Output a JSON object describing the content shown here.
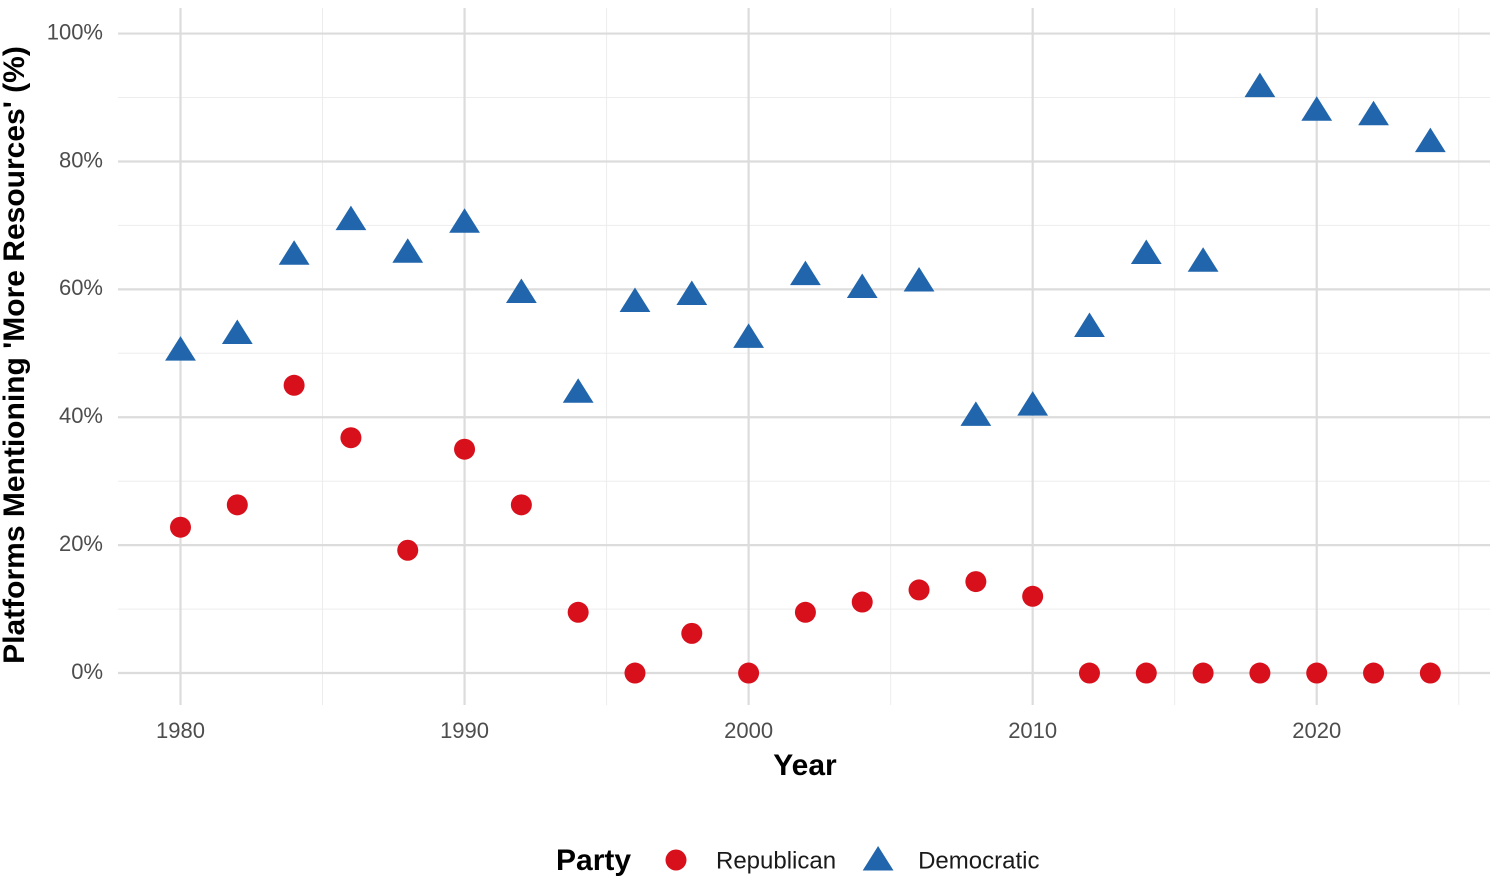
{
  "chart_data": {
    "type": "scatter",
    "x_label": "Year",
    "y_label": "Platforms Mentioning 'More Resources' (%)",
    "legend_title": "Party",
    "legend_position": "bottom",
    "grid": true,
    "x": [
      1980,
      1982,
      1984,
      1986,
      1988,
      1990,
      1992,
      1994,
      1996,
      1998,
      2000,
      2002,
      2004,
      2006,
      2008,
      2010,
      2012,
      2014,
      2016,
      2018,
      2020,
      2022,
      2024
    ],
    "series": [
      {
        "name": "Republican",
        "color": "#d7101c",
        "marker": "circle",
        "values": [
          22.8,
          26.3,
          45,
          36.8,
          19.2,
          35,
          26.3,
          9.5,
          0,
          6.2,
          0,
          9.5,
          11.1,
          13,
          14.3,
          12,
          0,
          0,
          0,
          0,
          0,
          0,
          0
        ]
      },
      {
        "name": "Democratic",
        "color": "#2166ac",
        "marker": "triangle",
        "values": [
          50.5,
          53.1,
          65.5,
          70.9,
          65.8,
          70.5,
          59.5,
          43.9,
          58.1,
          59.2,
          52.5,
          62.3,
          60.3,
          61.3,
          40.3,
          41.9,
          54.2,
          65.6,
          64.4,
          91.7,
          88,
          87.3,
          83.1
        ]
      }
    ],
    "xlim": [
      1977.8,
      2026.1
    ],
    "xticks": [
      1980,
      1990,
      2000,
      2010,
      2020
    ],
    "ylim": [
      -5,
      104
    ],
    "yticks": [
      {
        "value": 0,
        "label": "0%"
      },
      {
        "value": 20,
        "label": "20%"
      },
      {
        "value": 40,
        "label": "40%"
      },
      {
        "value": 60,
        "label": "60%"
      },
      {
        "value": 80,
        "label": "80%"
      },
      {
        "value": 100,
        "label": "100%"
      }
    ]
  }
}
